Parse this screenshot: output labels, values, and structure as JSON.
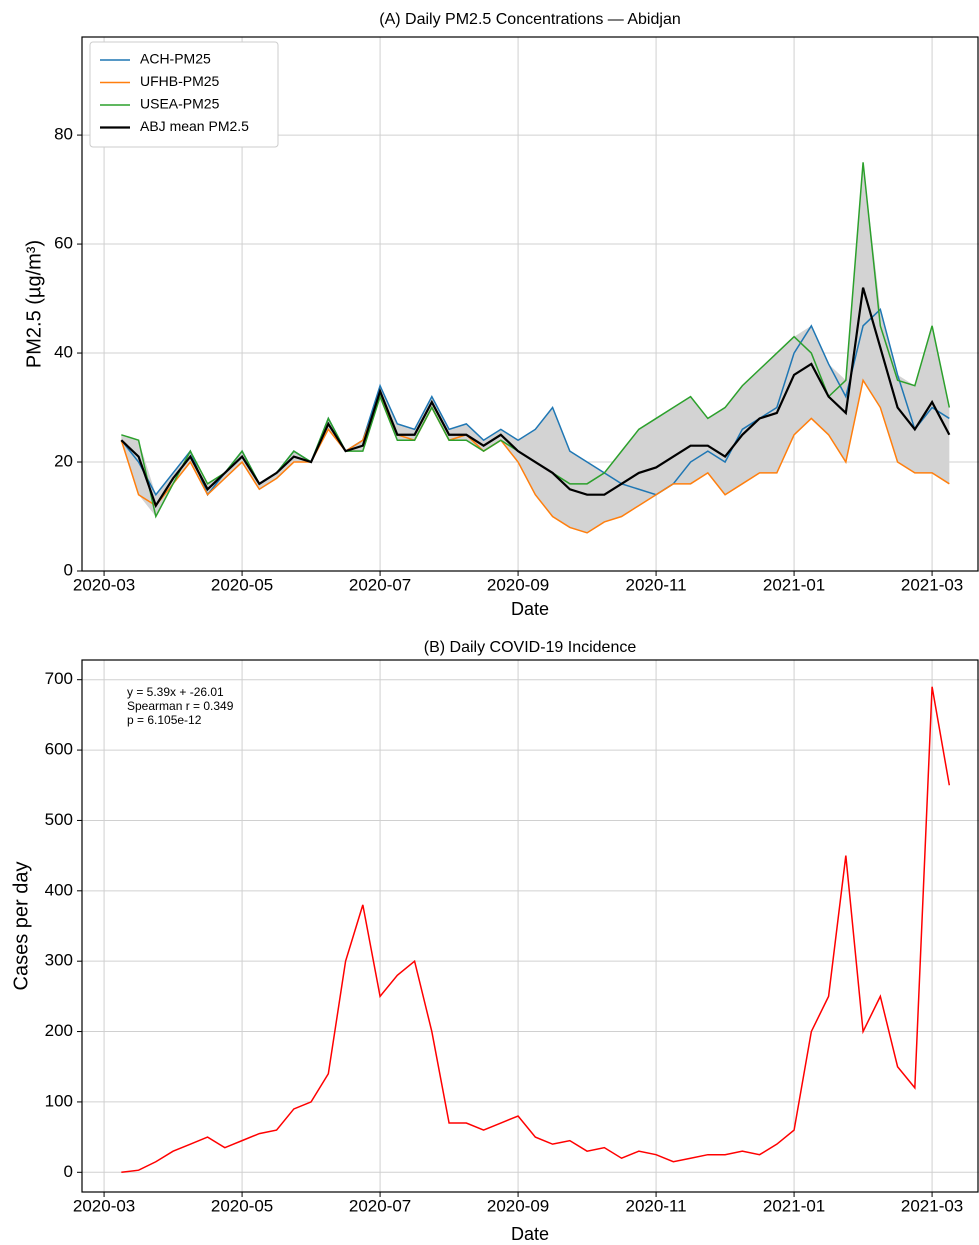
{
  "chart_data": [
    {
      "type": "line",
      "title": "(A) Daily PM2.5 Concentrations — Abidjan",
      "xlabel": "Date",
      "ylabel": "PM2.5 (µg/m³)",
      "x": [
        3.25,
        3.5,
        3.75,
        4,
        4.25,
        4.5,
        4.75,
        5,
        5.25,
        5.5,
        5.75,
        6,
        6.25,
        6.5,
        6.75,
        7,
        7.25,
        7.5,
        7.75,
        8,
        8.25,
        8.5,
        8.75,
        9,
        9.25,
        9.5,
        9.75,
        10,
        10.25,
        10.5,
        10.75,
        11,
        11.25,
        11.5,
        11.75,
        12,
        12.25,
        12.5,
        12.75,
        13,
        13.25,
        13.5,
        13.75,
        14,
        14.25,
        14.5,
        14.75,
        15,
        15.25
      ],
      "series": [
        {
          "name": "ACH-PM25",
          "color": "#1f77b4",
          "values": [
            24,
            20,
            14,
            18,
            22,
            14,
            18,
            22,
            16,
            18,
            22,
            20,
            28,
            22,
            24,
            34,
            27,
            26,
            32,
            26,
            27,
            24,
            26,
            24,
            26,
            30,
            22,
            20,
            18,
            16,
            15,
            14,
            16,
            20,
            22,
            20,
            26,
            28,
            30,
            40,
            45,
            38,
            32,
            45,
            48,
            36,
            26,
            30,
            28
          ]
        },
        {
          "name": "UFHB-PM25",
          "color": "#ff7f0e",
          "values": [
            24,
            14,
            12,
            16,
            20,
            14,
            17,
            20,
            15,
            17,
            20,
            20,
            26,
            22,
            24,
            32,
            25,
            24,
            30,
            24,
            25,
            22,
            24,
            20,
            14,
            10,
            8,
            7,
            9,
            10,
            12,
            14,
            16,
            16,
            18,
            14,
            16,
            18,
            18,
            25,
            28,
            25,
            20,
            35,
            30,
            20,
            18,
            18,
            16
          ]
        },
        {
          "name": "USEA-PM25",
          "color": "#2ca02c",
          "values": [
            25,
            24,
            10,
            16,
            22,
            16,
            18,
            22,
            16,
            18,
            22,
            20,
            28,
            22,
            22,
            32,
            24,
            24,
            30,
            24,
            24,
            22,
            24,
            22,
            20,
            18,
            16,
            16,
            18,
            22,
            26,
            28,
            30,
            32,
            28,
            30,
            34,
            37,
            40,
            43,
            40,
            32,
            35,
            75,
            45,
            35,
            34,
            45,
            30
          ]
        },
        {
          "name": "ABJ mean PM2.5",
          "color": "#000000",
          "values": [
            24,
            21,
            12,
            17,
            21,
            15,
            18,
            21,
            16,
            18,
            21,
            20,
            27,
            22,
            23,
            33,
            25,
            25,
            31,
            25,
            25,
            23,
            25,
            22,
            20,
            18,
            15,
            14,
            14,
            16,
            18,
            19,
            21,
            23,
            23,
            21,
            25,
            28,
            29,
            36,
            38,
            32,
            29,
            52,
            41,
            30,
            26,
            31,
            25
          ]
        }
      ],
      "band_color": "#d3d3d3",
      "xlim": [
        2.68,
        15.68
      ],
      "ylim": [
        0,
        98
      ],
      "xticks": [
        {
          "value": 3,
          "label": "2020-03"
        },
        {
          "value": 5,
          "label": "2020-05"
        },
        {
          "value": 7,
          "label": "2020-07"
        },
        {
          "value": 9,
          "label": "2020-09"
        },
        {
          "value": 11,
          "label": "2020-11"
        },
        {
          "value": 13,
          "label": "2021-01"
        },
        {
          "value": 15,
          "label": "2021-03"
        }
      ],
      "yticks": [
        0,
        20,
        40,
        60,
        80
      ],
      "grid": true,
      "legend": "upper left"
    },
    {
      "type": "line",
      "title": "(B) Daily COVID-19 Incidence",
      "xlabel": "Date",
      "ylabel": "Cases per day",
      "annotation": [
        "y = 5.39x + -26.01",
        "Spearman r = 0.349",
        "p = 6.105e-12"
      ],
      "x": [
        3.25,
        3.5,
        3.75,
        4,
        4.25,
        4.5,
        4.75,
        5,
        5.25,
        5.5,
        5.75,
        6,
        6.25,
        6.5,
        6.75,
        7,
        7.25,
        7.5,
        7.75,
        8,
        8.25,
        8.5,
        8.75,
        9,
        9.25,
        9.5,
        9.75,
        10,
        10.25,
        10.5,
        10.75,
        11,
        11.25,
        11.5,
        11.75,
        12,
        12.25,
        12.5,
        12.75,
        13,
        13.25,
        13.5,
        13.75,
        14,
        14.25,
        14.5,
        14.75,
        15,
        15.25
      ],
      "values": [
        0,
        3,
        15,
        30,
        40,
        50,
        35,
        45,
        55,
        60,
        90,
        100,
        140,
        300,
        380,
        250,
        280,
        300,
        200,
        70,
        70,
        60,
        70,
        80,
        50,
        40,
        45,
        30,
        35,
        20,
        30,
        25,
        15,
        20,
        25,
        25,
        30,
        25,
        40,
        60,
        200,
        250,
        450,
        200,
        250,
        150,
        120,
        690,
        550
      ],
      "color": "#ff0000",
      "xlim": [
        2.68,
        15.68
      ],
      "ylim": [
        -28,
        728
      ],
      "xticks": [
        {
          "value": 3,
          "label": "2020-03"
        },
        {
          "value": 5,
          "label": "2020-05"
        },
        {
          "value": 7,
          "label": "2020-07"
        },
        {
          "value": 9,
          "label": "2020-09"
        },
        {
          "value": 11,
          "label": "2020-11"
        },
        {
          "value": 13,
          "label": "2021-01"
        },
        {
          "value": 15,
          "label": "2021-03"
        }
      ],
      "yticks": [
        0,
        100,
        200,
        300,
        400,
        500,
        600,
        700
      ],
      "grid": true
    }
  ]
}
